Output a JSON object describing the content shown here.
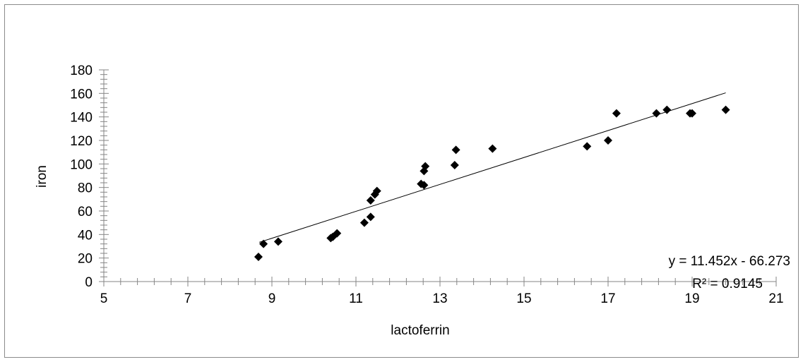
{
  "chart_data": {
    "type": "scatter",
    "xlabel": "lactoferrin",
    "ylabel": "iron",
    "xlim": [
      5,
      21
    ],
    "ylim": [
      0,
      180
    ],
    "x_ticks": [
      5,
      7,
      9,
      11,
      13,
      15,
      17,
      19,
      21
    ],
    "y_ticks": [
      0,
      20,
      40,
      60,
      80,
      100,
      120,
      140,
      160,
      180
    ],
    "grid": false,
    "marker": "diamond",
    "marker_color": "#000000",
    "series": [
      {
        "points": [
          [
            8.68,
            21
          ],
          [
            8.8,
            32
          ],
          [
            9.15,
            34
          ],
          [
            10.4,
            37
          ],
          [
            10.45,
            38
          ],
          [
            10.55,
            41
          ],
          [
            11.2,
            50
          ],
          [
            11.35,
            55
          ],
          [
            11.35,
            69
          ],
          [
            11.45,
            74
          ],
          [
            11.5,
            77
          ],
          [
            12.55,
            83
          ],
          [
            12.62,
            82
          ],
          [
            12.62,
            94
          ],
          [
            12.65,
            98
          ],
          [
            13.35,
            99
          ],
          [
            13.38,
            112
          ],
          [
            14.25,
            113
          ],
          [
            16.5,
            115
          ],
          [
            17.0,
            120
          ],
          [
            17.2,
            143
          ],
          [
            18.15,
            143
          ],
          [
            18.4,
            146
          ],
          [
            18.95,
            143
          ],
          [
            19.0,
            143
          ],
          [
            19.8,
            146
          ]
        ]
      }
    ],
    "trendline": {
      "slope": 11.452,
      "intercept": -66.273,
      "x_range": [
        8.7,
        19.8
      ],
      "equation": "y = 11.452x - 66.273",
      "r_squared": "R² = 0.9145"
    }
  }
}
